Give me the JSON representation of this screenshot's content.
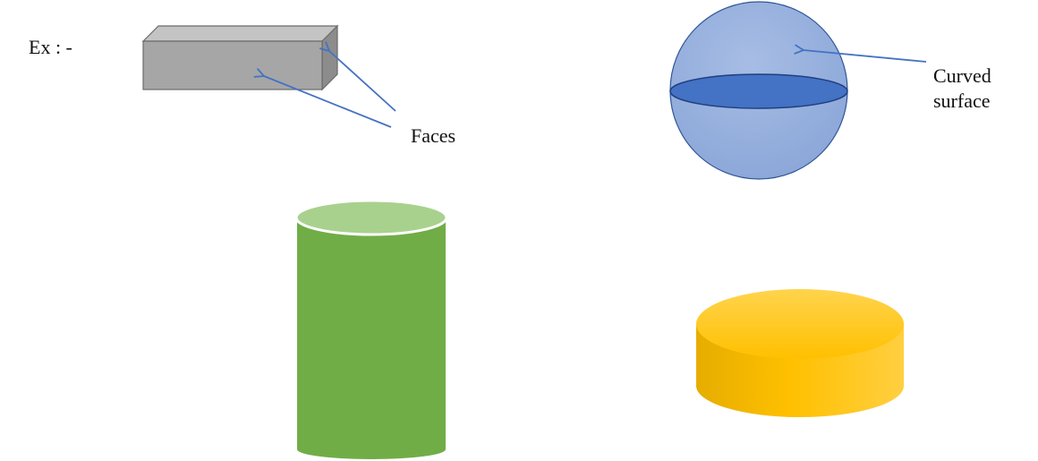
{
  "labels": {
    "example": "Ex  : -",
    "faces": "Faces",
    "curved_line1": "Curved",
    "curved_line2": "surface"
  },
  "shapes": {
    "cuboid": {
      "front": "#a6a6a6",
      "top": "#c4c4c4",
      "side": "#8c8c8c",
      "edge": "#6b6b6b"
    },
    "sphere": {
      "fill": "#8faadc",
      "equator": "#4472c4",
      "edge": "#2f5597"
    },
    "cylinder": {
      "body": "#70ad47",
      "top": "#a9d18e"
    },
    "disc": {
      "body": "#ffc000",
      "top": "#ffd966",
      "edge": "#e0a800"
    },
    "arrow_color": "#4472c4"
  }
}
